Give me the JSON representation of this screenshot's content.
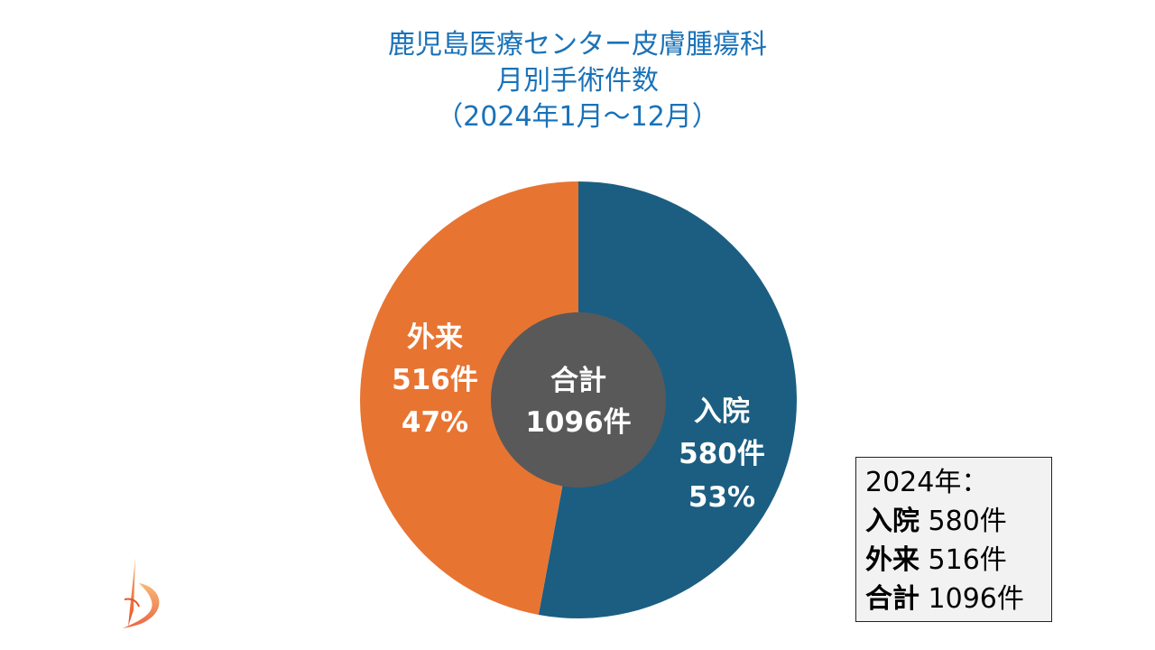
{
  "title": {
    "line1": "鹿児島医療センター皮膚腫瘍科",
    "line2": "月別手術件数",
    "line3": "（2024年1月～12月）"
  },
  "chart_data": {
    "type": "pie",
    "donut": true,
    "slices": [
      {
        "name": "入院",
        "value": 580,
        "unit": "件",
        "percent_label": "53%",
        "color": "#1b5e82"
      },
      {
        "name": "外来",
        "value": 516,
        "unit": "件",
        "percent_label": "47%",
        "color": "#e87432"
      }
    ],
    "center": {
      "label": "合計",
      "value_text": "1096件",
      "color": "#595959"
    }
  },
  "summary": {
    "header": "2024年：",
    "rows": [
      {
        "label": "入院",
        "value": "580件"
      },
      {
        "label": "外来",
        "value": "516件"
      },
      {
        "label": "合計",
        "value": "1096件"
      }
    ]
  },
  "colors": {
    "title": "#1a72b8"
  }
}
